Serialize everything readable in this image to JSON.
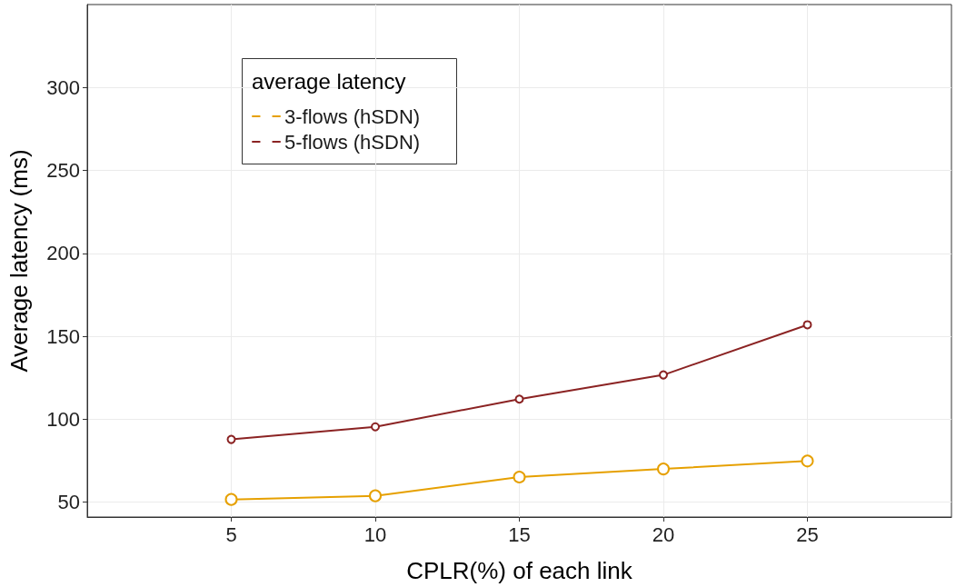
{
  "chart_data": {
    "type": "line",
    "xlabel": "CPLR(%) of each link",
    "ylabel": "Average latency (ms)",
    "legend_title": "average latency",
    "x": [
      5,
      10,
      15,
      20,
      25
    ],
    "series": [
      {
        "name": "3-flows (hSDN)",
        "color": "#e6a000",
        "values": [
          51.6,
          53.8,
          65.1,
          70,
          74.8
        ]
      },
      {
        "name": "5-flows (hSDN)",
        "color": "#8b2323",
        "values": [
          87.8,
          95.4,
          112.1,
          126.7,
          156.9
        ]
      }
    ],
    "xlim": [
      0,
      30
    ],
    "xticks": [
      5,
      10,
      15,
      20,
      25
    ],
    "ylim": [
      41,
      350
    ],
    "yticks": [
      50,
      100,
      150,
      200,
      250,
      300
    ],
    "grid": true,
    "legend": "top left",
    "marker": "circle",
    "line_style": "solid"
  }
}
